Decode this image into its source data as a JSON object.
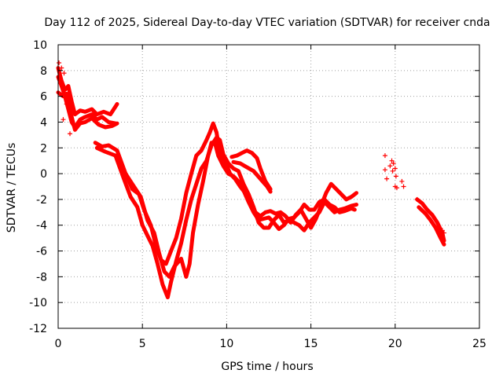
{
  "chart_data": {
    "type": "scatter",
    "title": "Day 112 of 2025, Sidereal Day-to-day VTEC variation (SDTVAR) for receiver cnda",
    "xlabel": "GPS time / hours",
    "ylabel": "SDTVAR / TECUs",
    "xlim": [
      0,
      25
    ],
    "ylim": [
      -12,
      10
    ],
    "xticks": [
      0,
      5,
      10,
      15,
      20,
      25
    ],
    "yticks": [
      -12,
      -10,
      -8,
      -6,
      -4,
      -2,
      0,
      2,
      4,
      6,
      8,
      10
    ],
    "grid": true,
    "marker": "+",
    "color": "#ff0000",
    "series": [
      {
        "name": "trace-1",
        "points": [
          [
            0.0,
            7.5
          ],
          [
            0.2,
            6.8
          ],
          [
            0.4,
            6.0
          ],
          [
            0.6,
            5.0
          ],
          [
            0.8,
            4.0
          ],
          [
            1.0,
            3.6
          ],
          [
            1.3,
            4.2
          ],
          [
            1.6,
            4.4
          ],
          [
            2.0,
            4.6
          ],
          [
            2.3,
            4.2
          ],
          [
            2.6,
            4.4
          ],
          [
            3.0,
            4.0
          ],
          [
            3.4,
            3.9
          ]
        ]
      },
      {
        "name": "trace-2",
        "points": [
          [
            0.0,
            8.2
          ],
          [
            0.2,
            7.2
          ],
          [
            0.4,
            6.5
          ],
          [
            0.6,
            6.8
          ],
          [
            0.8,
            5.6
          ],
          [
            1.0,
            4.6
          ],
          [
            1.3,
            4.9
          ],
          [
            1.6,
            4.8
          ],
          [
            2.0,
            5.0
          ],
          [
            2.3,
            4.6
          ],
          [
            2.7,
            4.8
          ],
          [
            3.1,
            4.6
          ],
          [
            3.5,
            5.4
          ]
        ]
      },
      {
        "name": "trace-3",
        "points": [
          [
            0.0,
            6.3
          ],
          [
            0.3,
            6.0
          ],
          [
            0.5,
            6.2
          ],
          [
            0.8,
            4.4
          ],
          [
            1.0,
            3.4
          ],
          [
            1.3,
            3.9
          ],
          [
            1.6,
            4.0
          ],
          [
            2.0,
            4.3
          ],
          [
            2.4,
            3.8
          ],
          [
            2.8,
            3.6
          ],
          [
            3.2,
            3.7
          ],
          [
            3.5,
            3.9
          ]
        ]
      },
      {
        "name": "trace-4",
        "points": [
          [
            2.2,
            2.4
          ],
          [
            2.6,
            2.1
          ],
          [
            3.0,
            2.2
          ],
          [
            3.5,
            1.8
          ],
          [
            4.0,
            0.0
          ],
          [
            4.4,
            -1.2
          ],
          [
            4.8,
            -1.6
          ],
          [
            5.1,
            -2.8
          ],
          [
            5.5,
            -4.0
          ],
          [
            5.8,
            -5.6
          ],
          [
            6.1,
            -6.7
          ],
          [
            6.4,
            -7.0
          ],
          [
            6.7,
            -6.0
          ],
          [
            7.0,
            -5.0
          ],
          [
            7.3,
            -3.5
          ],
          [
            7.6,
            -1.5
          ],
          [
            7.9,
            0.0
          ],
          [
            8.2,
            1.4
          ],
          [
            8.5,
            1.8
          ],
          [
            8.8,
            2.6
          ],
          [
            9.0,
            3.2
          ],
          [
            9.2,
            3.9
          ],
          [
            9.4,
            3.2
          ],
          [
            9.6,
            1.6
          ],
          [
            9.9,
            1.0
          ],
          [
            10.2,
            0.0
          ],
          [
            10.5,
            -0.4
          ],
          [
            10.8,
            -1.0
          ],
          [
            11.1,
            -1.5
          ],
          [
            11.4,
            -2.0
          ],
          [
            11.7,
            -3.0
          ],
          [
            12.0,
            -3.3
          ],
          [
            12.3,
            -3.0
          ],
          [
            12.6,
            -2.9
          ],
          [
            12.9,
            -3.1
          ],
          [
            13.2,
            -3.0
          ],
          [
            13.5,
            -3.3
          ],
          [
            13.8,
            -3.8
          ],
          [
            14.1,
            -3.2
          ],
          [
            14.4,
            -2.8
          ],
          [
            14.7,
            -3.5
          ],
          [
            15.0,
            -4.2
          ],
          [
            15.3,
            -3.5
          ],
          [
            15.6,
            -2.5
          ],
          [
            15.9,
            -1.5
          ],
          [
            16.2,
            -0.8
          ],
          [
            16.5,
            -1.2
          ],
          [
            16.8,
            -1.6
          ],
          [
            17.1,
            -2.0
          ],
          [
            17.4,
            -1.8
          ],
          [
            17.7,
            -1.5
          ]
        ]
      },
      {
        "name": "trace-5",
        "points": [
          [
            2.3,
            2.0
          ],
          [
            2.8,
            1.7
          ],
          [
            3.4,
            1.4
          ],
          [
            3.9,
            -0.4
          ],
          [
            4.3,
            -1.8
          ],
          [
            4.7,
            -2.6
          ],
          [
            5.0,
            -4.0
          ],
          [
            5.3,
            -4.8
          ],
          [
            5.6,
            -5.6
          ],
          [
            5.9,
            -7.0
          ],
          [
            6.2,
            -8.6
          ],
          [
            6.5,
            -9.6
          ],
          [
            6.7,
            -8.4
          ],
          [
            7.0,
            -6.8
          ],
          [
            7.3,
            -5.4
          ],
          [
            7.6,
            -3.6
          ],
          [
            7.9,
            -2.0
          ],
          [
            8.2,
            -0.8
          ],
          [
            8.5,
            0.4
          ],
          [
            8.8,
            1.0
          ],
          [
            9.1,
            2.2
          ],
          [
            9.4,
            2.8
          ],
          [
            9.6,
            2.6
          ],
          [
            9.8,
            1.5
          ],
          [
            10.1,
            0.8
          ],
          [
            10.4,
            0.4
          ],
          [
            10.7,
            0.2
          ],
          [
            11.0,
            -0.8
          ],
          [
            11.3,
            -1.6
          ],
          [
            11.6,
            -2.6
          ],
          [
            11.9,
            -3.8
          ],
          [
            12.2,
            -4.2
          ],
          [
            12.5,
            -4.2
          ],
          [
            12.8,
            -3.6
          ],
          [
            13.1,
            -3.2
          ],
          [
            13.4,
            -3.8
          ],
          [
            13.7,
            -3.6
          ],
          [
            14.0,
            -3.8
          ],
          [
            14.3,
            -4.0
          ],
          [
            14.6,
            -4.4
          ],
          [
            14.9,
            -3.8
          ],
          [
            15.2,
            -3.4
          ],
          [
            15.5,
            -3.0
          ],
          [
            15.8,
            -2.2
          ],
          [
            16.1,
            -2.6
          ],
          [
            16.4,
            -3.0
          ],
          [
            16.7,
            -2.8
          ],
          [
            17.0,
            -2.7
          ],
          [
            17.4,
            -2.5
          ],
          [
            17.7,
            -2.4
          ]
        ]
      },
      {
        "name": "trace-6",
        "points": [
          [
            3.9,
            0.2
          ],
          [
            4.4,
            -0.8
          ],
          [
            4.9,
            -1.8
          ],
          [
            5.3,
            -3.6
          ],
          [
            5.7,
            -4.6
          ],
          [
            6.0,
            -6.2
          ],
          [
            6.3,
            -7.6
          ],
          [
            6.6,
            -8.0
          ],
          [
            6.9,
            -7.2
          ],
          [
            7.3,
            -6.6
          ],
          [
            7.6,
            -8.0
          ],
          [
            7.8,
            -7.0
          ],
          [
            8.0,
            -4.6
          ],
          [
            8.3,
            -2.4
          ],
          [
            8.6,
            -0.6
          ],
          [
            8.9,
            1.4
          ],
          [
            9.1,
            2.4
          ],
          [
            9.3,
            2.4
          ],
          [
            9.5,
            1.4
          ],
          [
            9.8,
            0.6
          ],
          [
            10.1,
            0.0
          ],
          [
            10.4,
            -0.2
          ],
          [
            10.7,
            -0.6
          ],
          [
            11.0,
            -1.3
          ],
          [
            11.3,
            -2.2
          ],
          [
            11.6,
            -3.0
          ],
          [
            11.9,
            -3.6
          ],
          [
            12.2,
            -3.5
          ],
          [
            12.5,
            -3.4
          ],
          [
            12.8,
            -3.8
          ],
          [
            13.1,
            -4.3
          ],
          [
            13.4,
            -4.0
          ],
          [
            13.7,
            -3.5
          ],
          [
            14.0,
            -3.4
          ],
          [
            14.3,
            -3.0
          ],
          [
            14.6,
            -2.4
          ],
          [
            14.9,
            -2.8
          ],
          [
            15.2,
            -2.8
          ],
          [
            15.5,
            -2.2
          ],
          [
            15.8,
            -2.0
          ],
          [
            16.1,
            -2.4
          ],
          [
            16.4,
            -2.6
          ],
          [
            16.7,
            -3.0
          ],
          [
            17.0,
            -2.9
          ],
          [
            17.4,
            -2.7
          ],
          [
            17.6,
            -2.8
          ]
        ]
      },
      {
        "name": "trace-7",
        "points": [
          [
            10.3,
            1.3
          ],
          [
            10.6,
            1.4
          ],
          [
            10.9,
            1.6
          ],
          [
            11.2,
            1.8
          ],
          [
            11.5,
            1.6
          ],
          [
            11.8,
            1.2
          ],
          [
            12.0,
            0.4
          ],
          [
            12.3,
            -0.6
          ],
          [
            12.6,
            -1.2
          ]
        ]
      },
      {
        "name": "trace-8",
        "points": [
          [
            10.4,
            0.9
          ],
          [
            10.8,
            0.8
          ],
          [
            11.2,
            0.5
          ],
          [
            11.6,
            0.2
          ],
          [
            12.0,
            -0.4
          ],
          [
            12.4,
            -1.0
          ],
          [
            12.6,
            -1.4
          ]
        ]
      },
      {
        "name": "trace-9",
        "points": [
          [
            21.3,
            -2.0
          ],
          [
            21.6,
            -2.3
          ],
          [
            21.9,
            -2.8
          ],
          [
            22.2,
            -3.2
          ],
          [
            22.5,
            -3.8
          ],
          [
            22.8,
            -4.6
          ],
          [
            22.9,
            -5.2
          ]
        ]
      },
      {
        "name": "trace-10",
        "points": [
          [
            21.4,
            -2.6
          ],
          [
            21.8,
            -3.1
          ],
          [
            22.1,
            -3.6
          ],
          [
            22.4,
            -4.2
          ],
          [
            22.7,
            -5.0
          ],
          [
            22.9,
            -5.5
          ]
        ]
      }
    ],
    "markers": [
      [
        0.05,
        8.6
      ],
      [
        0.2,
        8.2
      ],
      [
        0.35,
        7.8
      ],
      [
        0.3,
        4.2
      ],
      [
        0.5,
        5.4
      ],
      [
        0.7,
        3.1
      ],
      [
        19.4,
        1.4
      ],
      [
        19.4,
        0.3
      ],
      [
        19.5,
        -0.4
      ],
      [
        19.7,
        0.6
      ],
      [
        19.8,
        1.0
      ],
      [
        19.85,
        0.2
      ],
      [
        19.9,
        0.8
      ],
      [
        20.0,
        0.4
      ],
      [
        20.05,
        -0.2
      ],
      [
        20.0,
        -1.0
      ],
      [
        20.1,
        -1.1
      ],
      [
        20.4,
        -0.6
      ],
      [
        20.5,
        -1.0
      ],
      [
        21.3,
        -2.0
      ],
      [
        22.8,
        -4.4
      ],
      [
        22.9,
        -4.6
      ]
    ]
  }
}
